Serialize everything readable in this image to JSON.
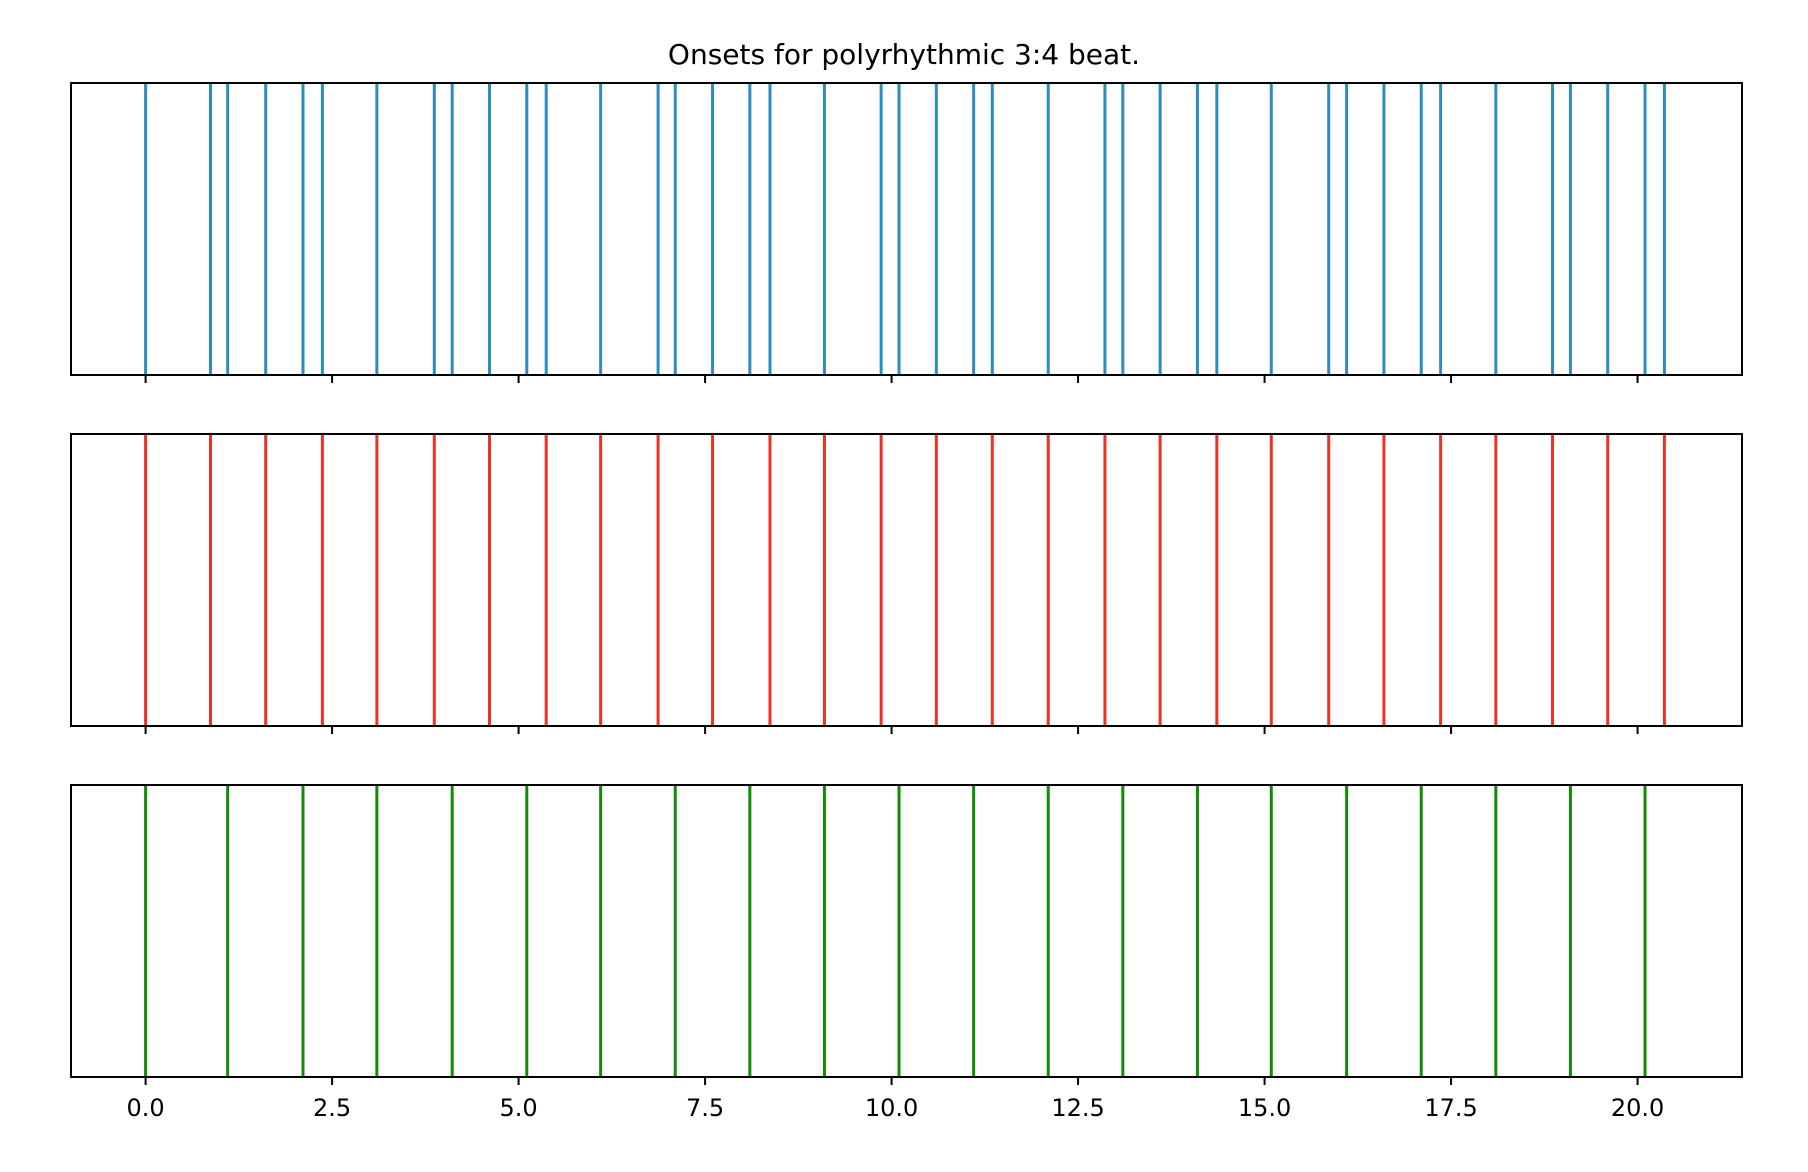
{
  "chart_data": {
    "type": "eventplot",
    "title": "Onsets for polyrhythmic 3:4 beat.",
    "xlim": [
      -1.0,
      21.4
    ],
    "x_ticks": [
      0.0,
      2.5,
      5.0,
      7.5,
      10.0,
      12.5,
      15.0,
      17.5,
      20.0
    ],
    "x_tick_labels": [
      "0.0",
      "2.5",
      "5.0",
      "7.5",
      "10.0",
      "12.5",
      "15.0",
      "17.5",
      "20.0"
    ],
    "shared_x": true,
    "y_axis_visible": false,
    "grid": false,
    "panels": [
      {
        "color": "#2b8cbe",
        "onsets": [
          0.0,
          0.87,
          1.1,
          1.61,
          2.11,
          2.37,
          3.1,
          3.87,
          4.11,
          4.61,
          5.11,
          5.37,
          6.1,
          6.87,
          7.1,
          7.6,
          8.1,
          8.37,
          9.1,
          9.86,
          10.1,
          10.6,
          11.1,
          11.35,
          12.1,
          12.86,
          13.1,
          13.6,
          14.1,
          14.36,
          15.09,
          15.86,
          16.1,
          16.6,
          17.1,
          17.36,
          18.1,
          18.86,
          19.1,
          19.6,
          20.1,
          20.36
        ]
      },
      {
        "color": "#ee3124",
        "onsets": [
          0.0,
          0.87,
          1.61,
          2.37,
          3.1,
          3.87,
          4.61,
          5.37,
          6.1,
          6.87,
          7.6,
          8.37,
          9.1,
          9.86,
          10.6,
          11.35,
          12.1,
          12.86,
          13.6,
          14.36,
          15.09,
          15.86,
          16.6,
          17.36,
          18.1,
          18.86,
          19.6,
          20.36
        ]
      },
      {
        "color": "#138a07",
        "onsets": [
          0.0,
          1.1,
          2.11,
          3.1,
          4.11,
          5.11,
          6.1,
          7.1,
          8.1,
          9.1,
          10.1,
          11.1,
          12.1,
          13.1,
          14.1,
          15.09,
          16.1,
          17.1,
          18.1,
          19.1,
          20.1
        ]
      }
    ]
  }
}
